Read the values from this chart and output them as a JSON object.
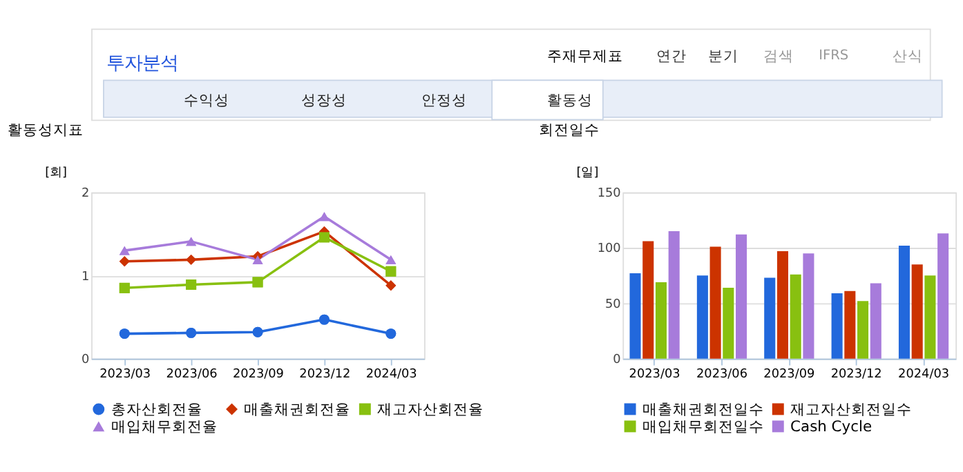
{
  "chart_data": [
    {
      "type": "line",
      "title": "활동성지표",
      "ylabel": "[회]",
      "annotations": [
        "투자분석",
        "주재무제표",
        "연간",
        "분기",
        "검색",
        "IFRS",
        "산식",
        "수익성",
        "성장성",
        "안정성",
        "활동성"
      ],
      "categories": [
        "2023/03",
        "2023/06",
        "2023/09",
        "2023/12",
        "2024/03"
      ],
      "series": [
        {
          "name": "총자산회전율",
          "color": "#2268dc",
          "marker": "circle",
          "values": [
            0.3,
            0.31,
            0.32,
            0.47,
            0.3
          ]
        },
        {
          "name": "매출채권회전율",
          "color": "#cc3300",
          "marker": "diamond",
          "values": [
            1.17,
            1.19,
            1.23,
            1.53,
            0.88
          ]
        },
        {
          "name": "재고자산회전율",
          "color": "#88c010",
          "marker": "square",
          "values": [
            0.85,
            0.89,
            0.92,
            1.46,
            1.05
          ]
        },
        {
          "name": "매입채무회전율",
          "color": "#a77bdb",
          "marker": "triangle",
          "values": [
            1.3,
            1.41,
            1.19,
            1.71,
            1.19
          ]
        }
      ],
      "ylim": [
        0,
        2
      ],
      "yticks": [
        0,
        1,
        2
      ],
      "grid": "y",
      "legend": "bottom"
    },
    {
      "type": "bar",
      "title": "회전일수",
      "ylabel": "[일]",
      "categories": [
        "2023/03",
        "2023/06",
        "2023/09",
        "2023/12",
        "2024/03"
      ],
      "series": [
        {
          "name": "매출채권회전일수",
          "color": "#2268dc",
          "values": [
            77,
            75,
            73,
            59,
            102
          ]
        },
        {
          "name": "재고자산회전일수",
          "color": "#cc3300",
          "values": [
            106,
            101,
            97,
            61,
            85
          ]
        },
        {
          "name": "매입채무회전일수",
          "color": "#88c010",
          "values": [
            69,
            64,
            76,
            52,
            75
          ]
        },
        {
          "name": "Cash Cycle",
          "color": "#a77bdb",
          "values": [
            115,
            112,
            95,
            68,
            113
          ]
        }
      ],
      "ylim": [
        0,
        150
      ],
      "yticks": [
        0,
        50,
        100,
        150
      ],
      "grid": "y",
      "legend": "bottom"
    }
  ]
}
